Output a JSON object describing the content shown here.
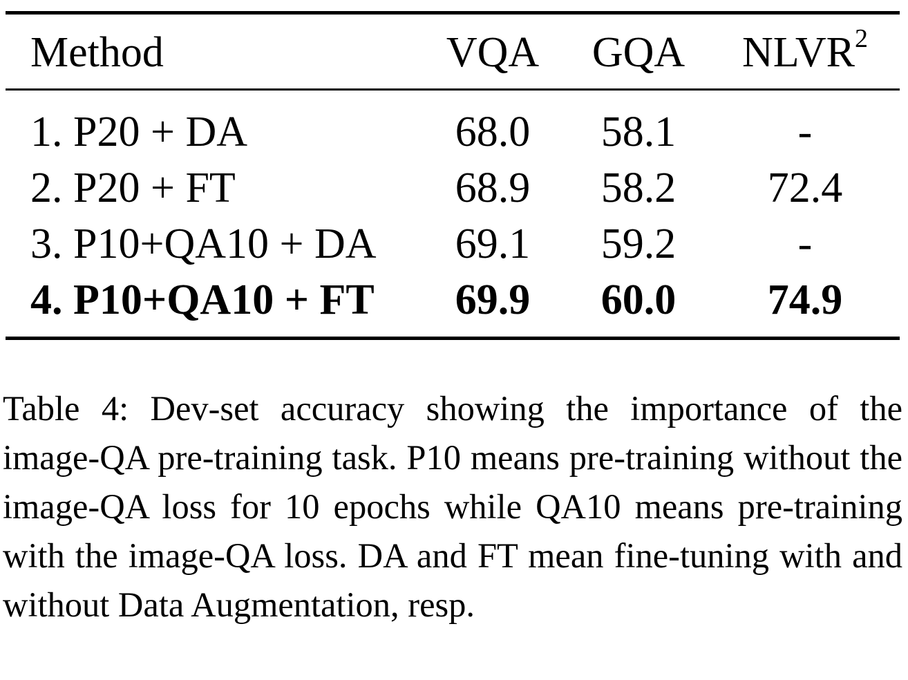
{
  "table": {
    "headers": {
      "method": "Method",
      "vqa": "VQA",
      "gqa": "GQA",
      "nlvr": "NLVR",
      "nlvr_sup": "2"
    },
    "rows": [
      {
        "method": "1. P20 + DA",
        "vqa": "68.0",
        "gqa": "58.1",
        "nlvr": "-"
      },
      {
        "method": "2. P20 + FT",
        "vqa": "68.9",
        "gqa": "58.2",
        "nlvr": "72.4"
      },
      {
        "method": "3. P10+QA10 + DA",
        "vqa": "69.1",
        "gqa": "59.2",
        "nlvr": "-"
      },
      {
        "method": "4. P10+QA10 + FT",
        "vqa": "69.9",
        "gqa": "60.0",
        "nlvr": "74.9"
      }
    ]
  },
  "caption": "Table 4:  Dev-set accuracy showing the importance of the image-QA pre-training task.  P10 means pre-training without the image-QA loss for 10 epochs while QA10 means pre-training with the image-QA loss. DA and FT mean fine-tuning with and without Data Augmentation, resp."
}
